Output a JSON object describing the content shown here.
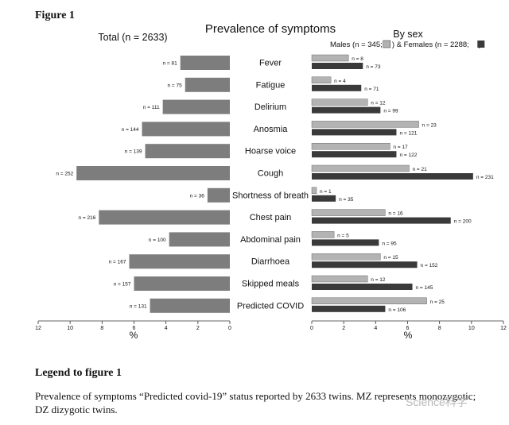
{
  "figure_label": "Figure 1",
  "legend_heading": "Legend to figure 1",
  "legend_text": "Prevalence of symptoms “Predicted covid-19” status reported by 2633 twins. MZ represents monozygotic; DZ dizygotic twins.",
  "watermark": "Science科学",
  "colors": {
    "total_bar": "#7d7d7d",
    "male_bar": "#b3b3b3",
    "female_bar": "#3a3a3a",
    "text": "#111111"
  },
  "chart_data": [
    {
      "type": "bar",
      "orientation": "horizontal",
      "direction": "right-to-left",
      "title": "Prevalence of symptoms",
      "subtitle": "Total (n = 2633)",
      "xlabel": "%",
      "xlim": [
        0,
        12
      ],
      "xticks": [
        12,
        10,
        8,
        6,
        4,
        2,
        0
      ],
      "categories": [
        "Fever",
        "Fatigue",
        "Delirium",
        "Anosmia",
        "Hoarse voice",
        "Cough",
        "Shortness of breath",
        "Chest pain",
        "Abdominal pain",
        "Diarrhoea",
        "Skipped meals",
        "Predicted COVID"
      ],
      "series": [
        {
          "name": "Total",
          "values": [
            3.1,
            2.8,
            4.2,
            5.5,
            5.3,
            9.6,
            1.4,
            8.2,
            3.8,
            6.3,
            6.0,
            5.0
          ],
          "labels": [
            "n = 81",
            "n = 75",
            "n = 111",
            "n = 144",
            "n = 139",
            "n = 252",
            "n = 36",
            "n = 216",
            "n = 100",
            "n = 167",
            "n = 157",
            "n = 131"
          ]
        }
      ]
    },
    {
      "type": "bar",
      "orientation": "horizontal",
      "title": "By sex",
      "legend_text": "Males (n = 345; ) & Females (n = 2288; )",
      "xlabel": "%",
      "xlim": [
        0,
        12
      ],
      "xticks": [
        0,
        2,
        4,
        6,
        8,
        10,
        12
      ],
      "categories": [
        "Fever",
        "Fatigue",
        "Delirium",
        "Anosmia",
        "Hoarse voice",
        "Cough",
        "Shortness of breath",
        "Chest pain",
        "Abdominal pain",
        "Diarrhoea",
        "Skipped meals",
        "Predicted COVID"
      ],
      "series": [
        {
          "name": "Males",
          "values": [
            2.3,
            1.2,
            3.5,
            6.7,
            4.9,
            6.1,
            0.3,
            4.6,
            1.4,
            4.3,
            3.5,
            7.2
          ],
          "labels": [
            "n = 8",
            "n = 4",
            "n = 12",
            "n = 23",
            "n = 17",
            "n = 21",
            "n = 1",
            "n = 16",
            "n = 5",
            "n = 15",
            "n = 12",
            "n = 25"
          ]
        },
        {
          "name": "Females",
          "values": [
            3.2,
            3.1,
            4.3,
            5.3,
            5.3,
            10.1,
            1.5,
            8.7,
            4.2,
            6.6,
            6.3,
            4.6
          ],
          "labels": [
            "n = 73",
            "n = 71",
            "n = 99",
            "n = 121",
            "n = 122",
            "n = 231",
            "n = 35",
            "n = 200",
            "n = 95",
            "n = 152",
            "n = 145",
            "n = 106"
          ]
        }
      ]
    }
  ]
}
